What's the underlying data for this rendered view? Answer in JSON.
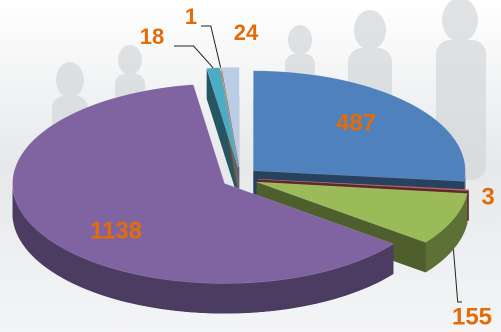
{
  "chart_data": {
    "type": "pie",
    "values": [
      487,
      3,
      155,
      1138,
      18,
      1,
      24
    ],
    "colors": [
      "#4f81bd",
      "#c0504d",
      "#9bbb59",
      "#8064a2",
      "#4bacc6",
      "#f79646",
      "#b9cde5"
    ]
  }
}
